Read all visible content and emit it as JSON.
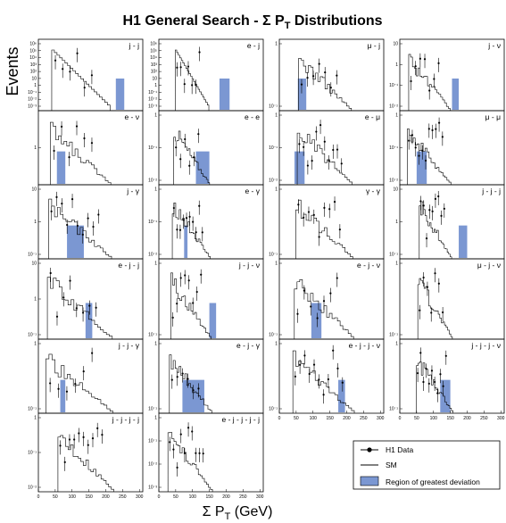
{
  "figure": {
    "title_main": "H1 General Search - Σ P",
    "title_sub": "T",
    "title_tail": " Distributions",
    "ylabel": "Events",
    "xlabel_main": "Σ P",
    "xlabel_sub": "T",
    "xlabel_tail": " (GeV)"
  },
  "legend": {
    "items": [
      {
        "label": "H1 Data",
        "symbol": "marker"
      },
      {
        "label": "SM",
        "symbol": "line"
      },
      {
        "label": "Region of greatest deviation",
        "symbol": "box"
      }
    ]
  },
  "colors": {
    "deviation_fill": "#7b97d2",
    "line": "#000000",
    "background": "#ffffff"
  },
  "chart_data": [
    {
      "type": "bar",
      "title": "j - j",
      "xlim": [
        0,
        310
      ],
      "xticks": [
        "0",
        "50",
        "100",
        "150",
        "200",
        "250",
        "300"
      ],
      "ylog": true,
      "yticks": [
        "10⁶",
        "10⁵",
        "10⁴",
        "10³",
        "10²",
        "10",
        "1",
        "10⁻¹",
        "10⁻²",
        "10⁻³"
      ],
      "deviation_range": [
        230,
        255
      ]
    },
    {
      "type": "bar",
      "title": "e - j",
      "xlim": [
        0,
        310
      ],
      "xticks": [
        "0",
        "50",
        "100",
        "150",
        "200",
        "250",
        "300"
      ],
      "ylog": true,
      "yticks": [
        "10⁶",
        "10⁵",
        "10⁴",
        "10³",
        "10²",
        "10",
        "1",
        "10⁻¹",
        "10⁻²",
        "10⁻³"
      ],
      "deviation_range": [
        180,
        210
      ]
    },
    {
      "type": "bar",
      "title": "μ - j",
      "xlim": [
        0,
        310
      ],
      "xticks": [
        "0",
        "50",
        "100",
        "150",
        "200",
        "250",
        "300"
      ],
      "ylog": true,
      "yticks": [
        "1",
        "10⁻¹"
      ],
      "deviation_range": [
        55,
        80
      ]
    },
    {
      "type": "bar",
      "title": "j - ν",
      "xlim": [
        0,
        310
      ],
      "xticks": [
        "0",
        "50",
        "100",
        "150",
        "200",
        "250",
        "300"
      ],
      "ylog": true,
      "yticks": [
        "10",
        "1",
        "10⁻¹",
        "10⁻²"
      ],
      "deviation_range": [
        155,
        175
      ]
    },
    {
      "type": "bar",
      "title": "e - ν",
      "xlim": [
        0,
        310
      ],
      "xticks": [
        "0",
        "50",
        "100",
        "150",
        "200",
        "250",
        "300"
      ],
      "ylog": true,
      "yticks": [
        "1"
      ],
      "deviation_range": [
        55,
        80
      ]
    },
    {
      "type": "bar",
      "title": "e - e",
      "xlim": [
        0,
        310
      ],
      "xticks": [
        "0",
        "50",
        "100",
        "150",
        "200",
        "250",
        "300"
      ],
      "ylog": true,
      "yticks": [
        "1",
        "10⁻¹",
        "10⁻²"
      ],
      "deviation_range": [
        110,
        150
      ]
    },
    {
      "type": "bar",
      "title": "e - μ",
      "xlim": [
        0,
        310
      ],
      "xticks": [
        "0",
        "50",
        "100",
        "150",
        "200",
        "250",
        "300"
      ],
      "ylog": true,
      "yticks": [
        "1",
        "10⁻¹",
        "10⁻²"
      ],
      "deviation_range": [
        45,
        75
      ]
    },
    {
      "type": "bar",
      "title": "μ - μ",
      "xlim": [
        0,
        310
      ],
      "xticks": [
        "0",
        "50",
        "100",
        "150",
        "200",
        "250",
        "300"
      ],
      "ylog": true,
      "yticks": [
        "1",
        "10⁻¹",
        "10⁻²"
      ],
      "deviation_range": [
        50,
        80
      ]
    },
    {
      "type": "bar",
      "title": "j - γ",
      "xlim": [
        0,
        310
      ],
      "xticks": [
        "0",
        "50",
        "100",
        "150",
        "200",
        "250",
        "300"
      ],
      "ylog": true,
      "yticks": [
        "10",
        "1",
        "10⁻¹"
      ],
      "deviation_range": [
        85,
        135
      ]
    },
    {
      "type": "bar",
      "title": "e - γ",
      "xlim": [
        0,
        310
      ],
      "xticks": [
        "0",
        "50",
        "100",
        "150",
        "200",
        "250",
        "300"
      ],
      "ylog": true,
      "yticks": [
        "1",
        "10⁻¹",
        "10⁻²"
      ],
      "deviation_range": [
        75,
        85
      ]
    },
    {
      "type": "bar",
      "title": "γ - γ",
      "xlim": [
        0,
        310
      ],
      "xticks": [
        "0",
        "50",
        "100",
        "150",
        "200",
        "250",
        "300"
      ],
      "ylog": true,
      "yticks": [
        "1",
        "10⁻¹"
      ],
      "deviation_range": null
    },
    {
      "type": "bar",
      "title": "j - j - j",
      "xlim": [
        0,
        310
      ],
      "xticks": [
        "0",
        "50",
        "100",
        "150",
        "200",
        "250",
        "300"
      ],
      "ylog": true,
      "yticks": [
        "10",
        "1",
        "10⁻¹"
      ],
      "deviation_range": [
        175,
        200
      ]
    },
    {
      "type": "bar",
      "title": "e - j - j",
      "xlim": [
        0,
        310
      ],
      "xticks": [
        "0",
        "50",
        "100",
        "150",
        "200",
        "250",
        "300"
      ],
      "ylog": true,
      "yticks": [
        "10",
        "1",
        "10⁻¹"
      ],
      "deviation_range": [
        140,
        160
      ]
    },
    {
      "type": "bar",
      "title": "j - j - ν",
      "xlim": [
        0,
        310
      ],
      "xticks": [
        "0",
        "50",
        "100",
        "150",
        "200",
        "250",
        "300"
      ],
      "ylog": true,
      "yticks": [
        "1",
        "10⁻¹"
      ],
      "deviation_range": [
        150,
        170
      ]
    },
    {
      "type": "bar",
      "title": "e - j - ν",
      "xlim": [
        0,
        310
      ],
      "xticks": [
        "0",
        "50",
        "100",
        "150",
        "200",
        "250",
        "300"
      ],
      "ylog": true,
      "yticks": [
        "1",
        "10⁻¹"
      ],
      "deviation_range": [
        95,
        125
      ]
    },
    {
      "type": "bar",
      "title": "μ - j - ν",
      "xlim": [
        0,
        310
      ],
      "xticks": [
        "0",
        "50",
        "100",
        "150",
        "200",
        "250",
        "300"
      ],
      "ylog": true,
      "yticks": [
        "1",
        "10⁻¹"
      ],
      "deviation_range": null
    },
    {
      "type": "bar",
      "title": "j - j - γ",
      "xlim": [
        0,
        310
      ],
      "xticks": [
        "0",
        "50",
        "100",
        "150",
        "200",
        "250",
        "300"
      ],
      "ylog": true,
      "yticks": [
        "1",
        "10⁻¹"
      ],
      "deviation_range": [
        65,
        80
      ]
    },
    {
      "type": "bar",
      "title": "e - j - γ",
      "xlim": [
        0,
        310
      ],
      "xticks": [
        "0",
        "50",
        "100",
        "150",
        "200",
        "250",
        "300"
      ],
      "ylog": true,
      "yticks": [
        "1",
        "10⁻¹"
      ],
      "deviation_range": [
        70,
        135
      ]
    },
    {
      "type": "bar",
      "title": "e - j - j - ν",
      "xlim": [
        0,
        310
      ],
      "xticks": [
        "0",
        "50",
        "100",
        "150",
        "200",
        "250",
        "300"
      ],
      "ylog": true,
      "yticks": [
        "1",
        "10⁻¹"
      ],
      "deviation_range": [
        175,
        195
      ]
    },
    {
      "type": "bar",
      "title": "j - j - j - ν",
      "xlim": [
        0,
        310
      ],
      "xticks": [
        "0",
        "50",
        "100",
        "150",
        "200",
        "250",
        "300"
      ],
      "ylog": true,
      "yticks": [
        "1",
        "10⁻¹"
      ],
      "deviation_range": [
        120,
        150
      ]
    },
    {
      "type": "bar",
      "title": "j - j - j - j",
      "xlim": [
        0,
        310
      ],
      "xticks": [
        "0",
        "50",
        "100",
        "150",
        "200",
        "250",
        "300"
      ],
      "ylog": true,
      "yticks": [
        "1",
        "10⁻¹",
        "10⁻²"
      ],
      "deviation_range": null
    },
    {
      "type": "bar",
      "title": "e - j - j - j - j",
      "xlim": [
        0,
        310
      ],
      "xticks": [
        "0",
        "50",
        "100",
        "150",
        "200",
        "250",
        "300"
      ],
      "ylog": true,
      "yticks": [
        "1",
        "10⁻¹",
        "10⁻²",
        "10⁻³"
      ],
      "deviation_range": null
    }
  ]
}
